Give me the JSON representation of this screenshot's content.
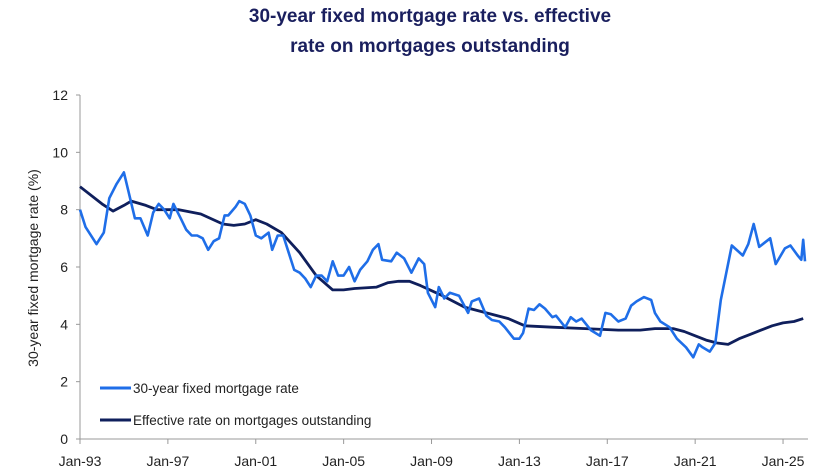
{
  "chart_data": {
    "type": "line",
    "title": "30-year fixed mortgage rate vs. effective rate on mortgages outstanding",
    "title_lines": [
      "30-year fixed mortgage rate vs. effective",
      "rate on mortgages outstanding"
    ],
    "xlabel": "",
    "ylabel": "30-year fixed mortgage rate (%)",
    "ylim": [
      0,
      12
    ],
    "yticks": [
      0,
      2,
      4,
      6,
      8,
      10,
      12
    ],
    "xlim": [
      "1993-01",
      "2026-01"
    ],
    "xticks": [
      "Jan-93",
      "Jan-97",
      "Jan-01",
      "Jan-05",
      "Jan-09",
      "Jan-13",
      "Jan-17",
      "Jan-21",
      "Jan-25"
    ],
    "grid": false,
    "legend": "bottom-left",
    "series": [
      {
        "name": "30-year fixed mortgage rate",
        "color": "#1f6ee8",
        "points": [
          [
            "1993-01",
            8.0
          ],
          [
            "1993-04",
            7.4
          ],
          [
            "1993-10",
            6.8
          ],
          [
            "1994-02",
            7.2
          ],
          [
            "1994-05",
            8.4
          ],
          [
            "1994-09",
            8.9
          ],
          [
            "1995-01",
            9.3
          ],
          [
            "1995-04",
            8.5
          ],
          [
            "1995-07",
            7.7
          ],
          [
            "1995-10",
            7.7
          ],
          [
            "1996-02",
            7.1
          ],
          [
            "1996-05",
            7.9
          ],
          [
            "1996-08",
            8.2
          ],
          [
            "1996-11",
            8.0
          ],
          [
            "1997-02",
            7.7
          ],
          [
            "1997-04",
            8.2
          ],
          [
            "1997-08",
            7.7
          ],
          [
            "1997-11",
            7.3
          ],
          [
            "1998-02",
            7.1
          ],
          [
            "1998-05",
            7.1
          ],
          [
            "1998-08",
            7.0
          ],
          [
            "1998-11",
            6.6
          ],
          [
            "1999-02",
            6.9
          ],
          [
            "1999-05",
            7.0
          ],
          [
            "1999-08",
            7.8
          ],
          [
            "1999-10",
            7.8
          ],
          [
            "2000-02",
            8.1
          ],
          [
            "2000-04",
            8.3
          ],
          [
            "2000-07",
            8.2
          ],
          [
            "2000-10",
            7.8
          ],
          [
            "2001-01",
            7.1
          ],
          [
            "2001-04",
            7.0
          ],
          [
            "2001-08",
            7.2
          ],
          [
            "2001-10",
            6.6
          ],
          [
            "2002-01",
            7.1
          ],
          [
            "2002-04",
            7.1
          ],
          [
            "2002-07",
            6.5
          ],
          [
            "2002-10",
            5.9
          ],
          [
            "2003-01",
            5.8
          ],
          [
            "2003-04",
            5.6
          ],
          [
            "2003-07",
            5.3
          ],
          [
            "2003-10",
            5.7
          ],
          [
            "2004-01",
            5.7
          ],
          [
            "2004-04",
            5.5
          ],
          [
            "2004-07",
            6.2
          ],
          [
            "2004-10",
            5.7
          ],
          [
            "2005-01",
            5.7
          ],
          [
            "2005-04",
            6.0
          ],
          [
            "2005-07",
            5.5
          ],
          [
            "2005-10",
            5.9
          ],
          [
            "2006-02",
            6.2
          ],
          [
            "2006-05",
            6.6
          ],
          [
            "2006-08",
            6.8
          ],
          [
            "2006-10",
            6.25
          ],
          [
            "2007-03",
            6.2
          ],
          [
            "2007-06",
            6.5
          ],
          [
            "2007-10",
            6.3
          ],
          [
            "2008-02",
            5.8
          ],
          [
            "2008-06",
            6.3
          ],
          [
            "2008-09",
            6.1
          ],
          [
            "2008-11",
            5.1
          ],
          [
            "2009-03",
            4.6
          ],
          [
            "2009-05",
            5.3
          ],
          [
            "2009-08",
            4.9
          ],
          [
            "2009-11",
            5.1
          ],
          [
            "2010-04",
            5.0
          ],
          [
            "2010-09",
            4.4
          ],
          [
            "2010-11",
            4.8
          ],
          [
            "2011-03",
            4.9
          ],
          [
            "2011-07",
            4.3
          ],
          [
            "2011-10",
            4.15
          ],
          [
            "2012-02",
            4.1
          ],
          [
            "2012-05",
            3.9
          ],
          [
            "2012-10",
            3.5
          ],
          [
            "2013-01",
            3.5
          ],
          [
            "2013-03",
            3.7
          ],
          [
            "2013-06",
            4.55
          ],
          [
            "2013-09",
            4.5
          ],
          [
            "2013-12",
            4.7
          ],
          [
            "2014-03",
            4.55
          ],
          [
            "2014-07",
            4.25
          ],
          [
            "2014-09",
            4.3
          ],
          [
            "2015-02",
            3.9
          ],
          [
            "2015-05",
            4.25
          ],
          [
            "2015-08",
            4.1
          ],
          [
            "2015-11",
            4.2
          ],
          [
            "2016-04",
            3.8
          ],
          [
            "2016-09",
            3.6
          ],
          [
            "2016-12",
            4.4
          ],
          [
            "2017-03",
            4.35
          ],
          [
            "2017-07",
            4.1
          ],
          [
            "2017-11",
            4.2
          ],
          [
            "2018-02",
            4.65
          ],
          [
            "2018-05",
            4.8
          ],
          [
            "2018-09",
            4.95
          ],
          [
            "2019-01",
            4.85
          ],
          [
            "2019-03",
            4.4
          ],
          [
            "2019-06",
            4.1
          ],
          [
            "2019-11",
            3.9
          ],
          [
            "2020-03",
            3.5
          ],
          [
            "2020-08",
            3.2
          ],
          [
            "2020-12",
            2.85
          ],
          [
            "2021-03",
            3.3
          ],
          [
            "2021-05",
            3.2
          ],
          [
            "2021-09",
            3.05
          ],
          [
            "2021-12",
            3.35
          ],
          [
            "2022-03",
            4.85
          ],
          [
            "2022-06",
            5.8
          ],
          [
            "2022-09",
            6.75
          ],
          [
            "2023-03",
            6.4
          ],
          [
            "2023-06",
            6.8
          ],
          [
            "2023-09",
            7.5
          ],
          [
            "2023-12",
            6.7
          ],
          [
            "2024-06",
            7.0
          ],
          [
            "2024-09",
            6.1
          ],
          [
            "2025-02",
            6.65
          ],
          [
            "2025-05",
            6.75
          ],
          [
            "2025-09",
            6.4
          ],
          [
            "2025-11",
            6.25
          ],
          [
            "2025-12",
            6.95
          ],
          [
            "2026-01",
            6.2
          ]
        ]
      },
      {
        "name": "Effective rate on mortgages outstanding",
        "color": "#0f1f5c",
        "points": [
          [
            "1993-01",
            8.8
          ],
          [
            "1994-01",
            8.2
          ],
          [
            "1994-07",
            7.95
          ],
          [
            "1995-01",
            8.15
          ],
          [
            "1995-05",
            8.3
          ],
          [
            "1996-01",
            8.15
          ],
          [
            "1996-07",
            8.0
          ],
          [
            "1997-07",
            8.0
          ],
          [
            "1998-07",
            7.85
          ],
          [
            "1999-07",
            7.5
          ],
          [
            "2000-01",
            7.45
          ],
          [
            "2000-07",
            7.5
          ],
          [
            "2001-01",
            7.65
          ],
          [
            "2001-07",
            7.5
          ],
          [
            "2002-03",
            7.2
          ],
          [
            "2003-01",
            6.5
          ],
          [
            "2003-10",
            5.7
          ],
          [
            "2004-07",
            5.2
          ],
          [
            "2005-01",
            5.2
          ],
          [
            "2005-07",
            5.25
          ],
          [
            "2006-07",
            5.3
          ],
          [
            "2007-01",
            5.45
          ],
          [
            "2007-07",
            5.5
          ],
          [
            "2008-01",
            5.5
          ],
          [
            "2008-07",
            5.35
          ],
          [
            "2009-07",
            5.0
          ],
          [
            "2010-07",
            4.6
          ],
          [
            "2011-07",
            4.4
          ],
          [
            "2012-07",
            4.2
          ],
          [
            "2013-04",
            3.95
          ],
          [
            "2014-07",
            3.9
          ],
          [
            "2016-01",
            3.85
          ],
          [
            "2017-07",
            3.8
          ],
          [
            "2018-07",
            3.8
          ],
          [
            "2019-03",
            3.85
          ],
          [
            "2020-01",
            3.85
          ],
          [
            "2020-07",
            3.75
          ],
          [
            "2021-01",
            3.6
          ],
          [
            "2021-07",
            3.45
          ],
          [
            "2022-01",
            3.35
          ],
          [
            "2022-07",
            3.3
          ],
          [
            "2023-01",
            3.5
          ],
          [
            "2023-07",
            3.65
          ],
          [
            "2024-01",
            3.8
          ],
          [
            "2024-07",
            3.95
          ],
          [
            "2025-01",
            4.05
          ],
          [
            "2025-07",
            4.1
          ],
          [
            "2025-12",
            4.2
          ]
        ]
      }
    ]
  }
}
